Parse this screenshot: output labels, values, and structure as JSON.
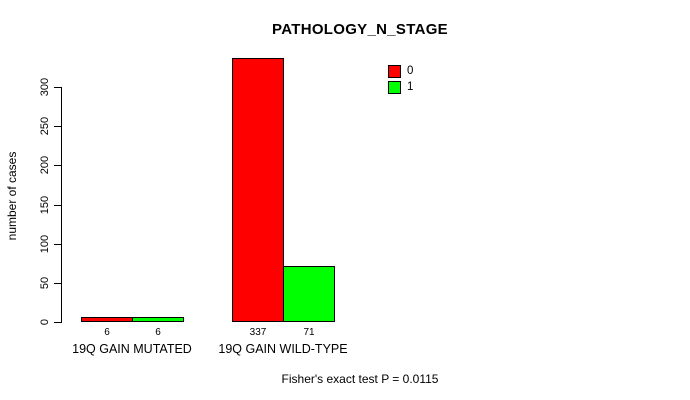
{
  "chart_data": {
    "type": "bar",
    "title": "PATHOLOGY_N_STAGE",
    "ylabel": "number of cases",
    "xlabel": "",
    "categories": [
      "19Q GAIN MUTATED",
      "19Q GAIN WILD-TYPE"
    ],
    "series": [
      {
        "name": "0",
        "color": "#FF0000",
        "values": [
          6,
          337
        ]
      },
      {
        "name": "1",
        "color": "#00FF00",
        "values": [
          6,
          71
        ]
      }
    ],
    "bar_value_labels": [
      [
        "6",
        "337"
      ],
      [
        "6",
        "71"
      ]
    ],
    "yticks": [
      0,
      50,
      100,
      150,
      200,
      250,
      300
    ],
    "ylim": [
      0,
      300
    ],
    "grid": false,
    "legend_position": "top-right-inside",
    "annotation": "Fisher's exact test P = 0.0115"
  },
  "colors": {
    "background": "#FFFFFF",
    "axis": "#000000",
    "series_0": "#FF0000",
    "series_1": "#00FF00"
  }
}
